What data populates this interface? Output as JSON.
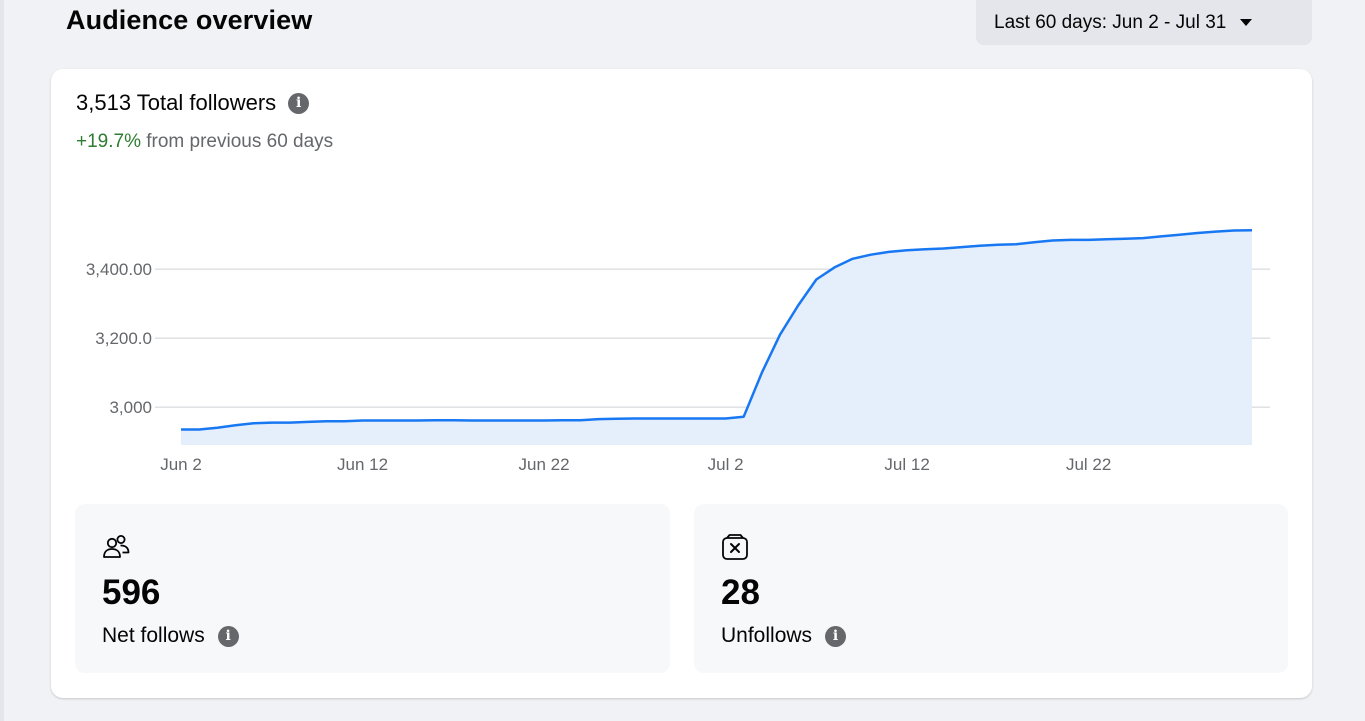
{
  "header": {
    "title": "Audience overview",
    "date_range": "Last 60 days: Jun 2 - Jul 31"
  },
  "summary": {
    "total_followers": "3,513 Total followers",
    "growth_value": "+19.7%",
    "growth_text": " from previous 60 days"
  },
  "stats": {
    "net_follows": {
      "value": "596",
      "label": "Net follows"
    },
    "unfollows": {
      "value": "28",
      "label": "Unfollows"
    }
  },
  "icons": {
    "info": "info-icon",
    "people": "people-icon",
    "unfollow": "unfollow-icon",
    "caret": "caret-down-icon"
  },
  "colors": {
    "line": "#1877f2",
    "area": "#e5effc",
    "growth": "#31a24c"
  },
  "chart_data": {
    "type": "area",
    "title": "",
    "xlabel": "",
    "ylabel": "",
    "x_ticks": [
      "Jun 2",
      "Jun 12",
      "Jun 22",
      "Jul 2",
      "Jul 12",
      "Jul 22"
    ],
    "y_ticks": [
      {
        "value": 3000,
        "label": "3,000"
      },
      {
        "value": 3200,
        "label": "3,200.0"
      },
      {
        "value": 3400,
        "label": "3,400.00"
      }
    ],
    "ylim": [
      2890,
      3560
    ],
    "grid": true,
    "x": [
      "Jun 2",
      "Jun 3",
      "Jun 4",
      "Jun 5",
      "Jun 6",
      "Jun 7",
      "Jun 8",
      "Jun 9",
      "Jun 10",
      "Jun 11",
      "Jun 12",
      "Jun 13",
      "Jun 14",
      "Jun 15",
      "Jun 16",
      "Jun 17",
      "Jun 18",
      "Jun 19",
      "Jun 20",
      "Jun 21",
      "Jun 22",
      "Jun 23",
      "Jun 24",
      "Jun 25",
      "Jun 26",
      "Jun 27",
      "Jun 28",
      "Jun 29",
      "Jun 30",
      "Jul 1",
      "Jul 2",
      "Jul 3",
      "Jul 4",
      "Jul 5",
      "Jul 6",
      "Jul 7",
      "Jul 8",
      "Jul 9",
      "Jul 10",
      "Jul 11",
      "Jul 12",
      "Jul 13",
      "Jul 14",
      "Jul 15",
      "Jul 16",
      "Jul 17",
      "Jul 18",
      "Jul 19",
      "Jul 20",
      "Jul 21",
      "Jul 22",
      "Jul 23",
      "Jul 24",
      "Jul 25",
      "Jul 26",
      "Jul 27",
      "Jul 28",
      "Jul 29",
      "Jul 30",
      "Jul 31"
    ],
    "values": [
      2935,
      2935,
      2940,
      2947,
      2953,
      2955,
      2955,
      2957,
      2959,
      2959,
      2961,
      2961,
      2961,
      2961,
      2962,
      2962,
      2961,
      2961,
      2961,
      2961,
      2961,
      2962,
      2962,
      2965,
      2966,
      2967,
      2967,
      2967,
      2967,
      2967,
      2967,
      2972,
      3100,
      3210,
      3295,
      3370,
      3405,
      3430,
      3442,
      3450,
      3455,
      3458,
      3460,
      3464,
      3468,
      3471,
      3472,
      3478,
      3483,
      3485,
      3485,
      3487,
      3488,
      3490,
      3495,
      3500,
      3505,
      3509,
      3512,
      3513
    ]
  }
}
